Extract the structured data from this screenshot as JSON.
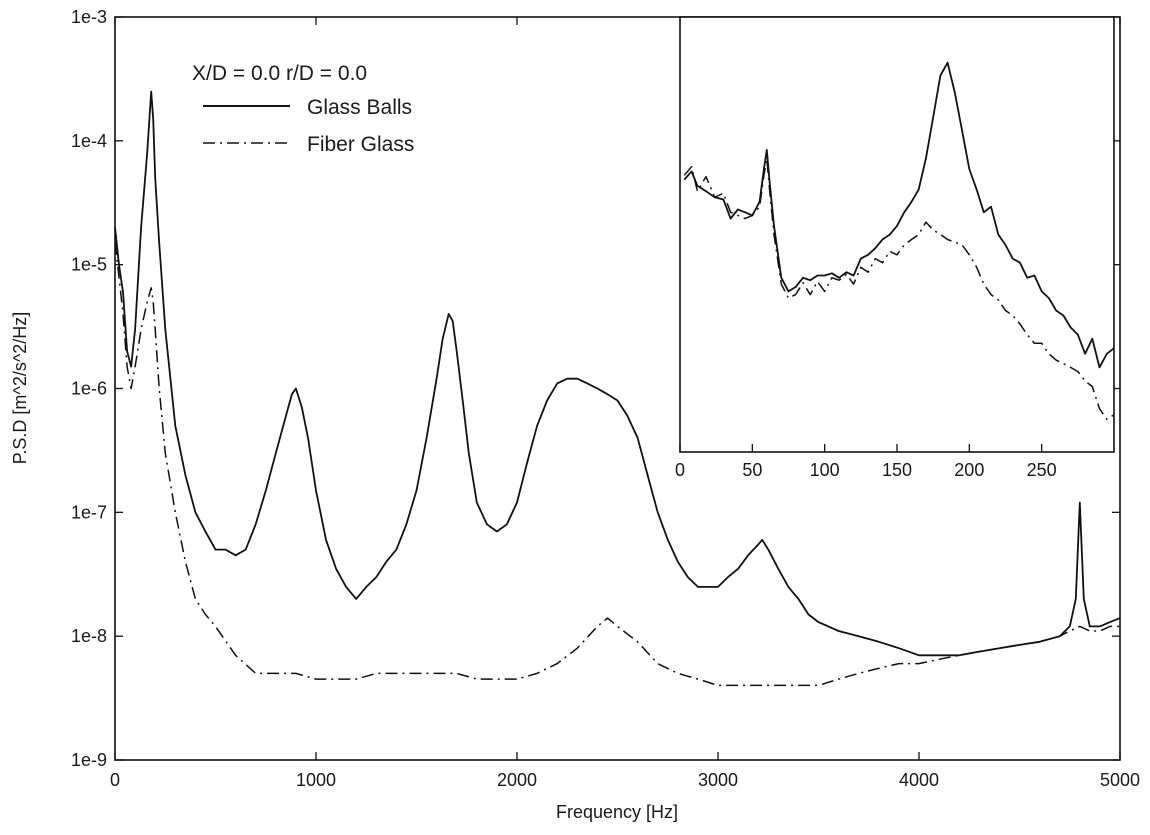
{
  "chart_data": [
    {
      "type": "line",
      "xlabel": "Frequency [Hz]",
      "ylabel": "P.S.D [m^2/s^2/Hz]",
      "xscale": "linear",
      "yscale": "log",
      "xlim": [
        0,
        5000
      ],
      "ylim": [
        1e-09,
        0.001
      ],
      "x_ticks": [
        0,
        1000,
        2000,
        3000,
        4000,
        5000
      ],
      "x_tick_labels": [
        "0",
        "1000",
        "2000",
        "3000",
        "4000",
        "5000"
      ],
      "y_ticks": [
        1e-09,
        1e-08,
        1e-07,
        1e-06,
        1e-05,
        0.0001,
        0.001
      ],
      "y_tick_labels": [
        "1e-9",
        "1e-8",
        "1e-7",
        "1e-6",
        "1e-5",
        "1e-4",
        "1e-3"
      ],
      "grid": false,
      "legend_position": "top-left",
      "legend_title": "X/D = 0.0  r/D = 0.0",
      "series": [
        {
          "name": "Glass Balls",
          "style": "solid",
          "color": "#111111",
          "x": [
            0,
            20,
            40,
            60,
            80,
            100,
            130,
            160,
            180,
            190,
            200,
            220,
            250,
            300,
            350,
            400,
            450,
            500,
            550,
            600,
            650,
            700,
            750,
            800,
            850,
            880,
            900,
            930,
            960,
            1000,
            1050,
            1100,
            1150,
            1200,
            1250,
            1300,
            1350,
            1400,
            1450,
            1500,
            1550,
            1600,
            1630,
            1660,
            1680,
            1700,
            1730,
            1760,
            1800,
            1850,
            1900,
            1950,
            2000,
            2050,
            2100,
            2150,
            2200,
            2250,
            2300,
            2350,
            2400,
            2450,
            2500,
            2550,
            2600,
            2650,
            2700,
            2750,
            2800,
            2850,
            2900,
            2950,
            3000,
            3050,
            3100,
            3150,
            3200,
            3220,
            3250,
            3300,
            3350,
            3400,
            3450,
            3500,
            3600,
            3700,
            3800,
            3900,
            4000,
            4100,
            4200,
            4300,
            4400,
            4500,
            4600,
            4700,
            4750,
            4780,
            4800,
            4820,
            4850,
            4900,
            4950,
            5000
          ],
          "y": [
            2e-05,
            1e-05,
            6e-06,
            2e-06,
            1.5e-06,
            3e-06,
            2e-05,
            8e-05,
            0.00025,
            0.00015,
            5e-05,
            1.5e-05,
            3e-06,
            5e-07,
            2e-07,
            1e-07,
            7e-08,
            5e-08,
            5e-08,
            4.5e-08,
            5e-08,
            8e-08,
            1.5e-07,
            3e-07,
            6e-07,
            9e-07,
            1e-06,
            7e-07,
            4e-07,
            1.5e-07,
            6e-08,
            3.5e-08,
            2.5e-08,
            2e-08,
            2.5e-08,
            3e-08,
            4e-08,
            5e-08,
            8e-08,
            1.5e-07,
            4e-07,
            1.2e-06,
            2.5e-06,
            4e-06,
            3.5e-06,
            2e-06,
            8e-07,
            3e-07,
            1.2e-07,
            8e-08,
            7e-08,
            8e-08,
            1.2e-07,
            2.5e-07,
            5e-07,
            8e-07,
            1.1e-06,
            1.2e-06,
            1.2e-06,
            1.1e-06,
            1e-06,
            9e-07,
            8e-07,
            6e-07,
            4e-07,
            2e-07,
            1e-07,
            6e-08,
            4e-08,
            3e-08,
            2.5e-08,
            2.5e-08,
            2.5e-08,
            3e-08,
            3.5e-08,
            4.5e-08,
            5.5e-08,
            6e-08,
            5e-08,
            3.5e-08,
            2.5e-08,
            2e-08,
            1.5e-08,
            1.3e-08,
            1.1e-08,
            1e-08,
            9e-09,
            8e-09,
            7e-09,
            7e-09,
            7e-09,
            7.5e-09,
            8e-09,
            8.5e-09,
            9e-09,
            1e-08,
            1.2e-08,
            2e-08,
            1.2e-07,
            2e-08,
            1.2e-08,
            1.2e-08,
            1.3e-08,
            1.4e-08
          ]
        },
        {
          "name": "Fiber Glass",
          "style": "dash-dot",
          "color": "#111111",
          "x": [
            0,
            20,
            40,
            60,
            80,
            100,
            130,
            160,
            180,
            190,
            200,
            220,
            250,
            300,
            350,
            400,
            450,
            500,
            600,
            700,
            800,
            900,
            1000,
            1100,
            1200,
            1300,
            1400,
            1500,
            1600,
            1700,
            1800,
            1900,
            2000,
            2100,
            2200,
            2300,
            2400,
            2450,
            2500,
            2600,
            2700,
            2800,
            2900,
            3000,
            3100,
            3200,
            3300,
            3400,
            3500,
            3600,
            3700,
            3800,
            3900,
            4000,
            4100,
            4200,
            4300,
            4400,
            4500,
            4600,
            4700,
            4750,
            4800,
            4850,
            4900,
            4950,
            5000
          ],
          "y": [
            1.5e-05,
            8e-06,
            4e-06,
            1.5e-06,
            1e-06,
            1.5e-06,
            3e-06,
            5e-06,
            6.5e-06,
            5e-06,
            3e-06,
            1e-06,
            3e-07,
            1e-07,
            4e-08,
            2e-08,
            1.5e-08,
            1.2e-08,
            7e-09,
            5e-09,
            5e-09,
            5e-09,
            4.5e-09,
            4.5e-09,
            4.5e-09,
            5e-09,
            5e-09,
            5e-09,
            5e-09,
            5e-09,
            4.5e-09,
            4.5e-09,
            4.5e-09,
            5e-09,
            6e-09,
            8e-09,
            1.2e-08,
            1.4e-08,
            1.2e-08,
            9e-09,
            6e-09,
            5e-09,
            4.5e-09,
            4e-09,
            4e-09,
            4e-09,
            4e-09,
            4e-09,
            4e-09,
            4.5e-09,
            5e-09,
            5.5e-09,
            6e-09,
            6e-09,
            6.5e-09,
            7e-09,
            7.5e-09,
            8e-09,
            8.5e-09,
            9e-09,
            1e-08,
            1.1e-08,
            1.2e-08,
            1.1e-08,
            1.1e-08,
            1.2e-08,
            1.2e-08
          ]
        }
      ]
    },
    {
      "type": "line",
      "panel": "inset",
      "xscale": "linear",
      "yscale": "log",
      "xlim": [
        0,
        300
      ],
      "ylim": [
        1e-07,
        0.001
      ],
      "x_ticks": [
        0,
        50,
        100,
        150,
        200,
        250
      ],
      "x_tick_labels": [
        "0",
        "50",
        "100",
        "150",
        "200",
        "250"
      ],
      "show_y_ticks": false,
      "series": [
        {
          "name": "Glass Balls",
          "style": "solid",
          "color": "#111111",
          "x": [
            3,
            8,
            12,
            18,
            24,
            30,
            35,
            40,
            45,
            50,
            55,
            58,
            60,
            62,
            65,
            70,
            75,
            80,
            85,
            90,
            95,
            100,
            105,
            110,
            115,
            120,
            125,
            130,
            135,
            140,
            145,
            150,
            155,
            160,
            165,
            170,
            175,
            180,
            185,
            190,
            195,
            200,
            205,
            210,
            215,
            220,
            225,
            230,
            235,
            240,
            245,
            250,
            255,
            260,
            265,
            270,
            275,
            280,
            285,
            290,
            295,
            300
          ],
          "y": [
            3.2e-05,
            3.8e-05,
            2.8e-05,
            2.5e-05,
            2.2e-05,
            2.1e-05,
            1.4e-05,
            1.7e-05,
            1.6e-05,
            1.5e-05,
            2e-05,
            4e-05,
            6e-05,
            3e-05,
            1.2e-05,
            4e-06,
            3e-06,
            3.3e-06,
            4e-06,
            3.8e-06,
            4.2e-06,
            4.2e-06,
            4.4e-06,
            4e-06,
            4.5e-06,
            4.2e-06,
            6e-06,
            6.5e-06,
            7.5e-06,
            9e-06,
            1e-05,
            1.2e-05,
            1.6e-05,
            2e-05,
            2.6e-05,
            5e-05,
            0.00012,
            0.00029,
            0.00038,
            0.0002,
            9e-05,
            4e-05,
            2.6e-05,
            1.6e-05,
            1.8e-05,
            1e-05,
            8e-06,
            6e-06,
            5.5e-06,
            4e-06,
            4.2e-06,
            3e-06,
            2.6e-06,
            2e-06,
            1.8e-06,
            1.4e-06,
            1.2e-06,
            8e-07,
            1.1e-06,
            6e-07,
            8e-07,
            9e-07
          ]
        },
        {
          "name": "Fiber Glass",
          "style": "dash-dot",
          "color": "#111111",
          "x": [
            3,
            8,
            12,
            18,
            24,
            30,
            35,
            40,
            45,
            50,
            55,
            58,
            60,
            62,
            65,
            70,
            75,
            80,
            85,
            90,
            95,
            100,
            105,
            110,
            115,
            120,
            125,
            130,
            135,
            140,
            145,
            150,
            155,
            160,
            165,
            170,
            175,
            180,
            185,
            190,
            195,
            200,
            205,
            210,
            215,
            220,
            225,
            230,
            235,
            240,
            245,
            250,
            255,
            260,
            265,
            270,
            275,
            280,
            285,
            290,
            295,
            300
          ],
          "y": [
            3.5e-05,
            4.2e-05,
            2.5e-05,
            3.4e-05,
            2.2e-05,
            2.4e-05,
            1.6e-05,
            1.5e-05,
            1.4e-05,
            1.5e-05,
            1.8e-05,
            3.5e-05,
            5e-05,
            2.5e-05,
            1e-05,
            3.5e-06,
            2.6e-06,
            2.8e-06,
            3.6e-06,
            2.8e-06,
            3.7e-06,
            3e-06,
            4e-06,
            3.8e-06,
            4.3e-06,
            3.5e-06,
            5e-06,
            4.5e-06,
            6e-06,
            5.5e-06,
            7e-06,
            6.5e-06,
            8e-06,
            9e-06,
            1e-05,
            1.3e-05,
            1.1e-05,
            1e-05,
            9e-06,
            8.5e-06,
            8e-06,
            6.5e-06,
            5e-06,
            3.5e-06,
            2.8e-06,
            2.5e-06,
            2e-06,
            1.8e-06,
            1.5e-06,
            1.2e-06,
            1e-06,
            1e-06,
            8e-07,
            7e-07,
            6.5e-07,
            6e-07,
            5.5e-07,
            4.5e-07,
            4e-07,
            2.5e-07,
            2e-07,
            2.2e-07
          ]
        }
      ]
    }
  ]
}
